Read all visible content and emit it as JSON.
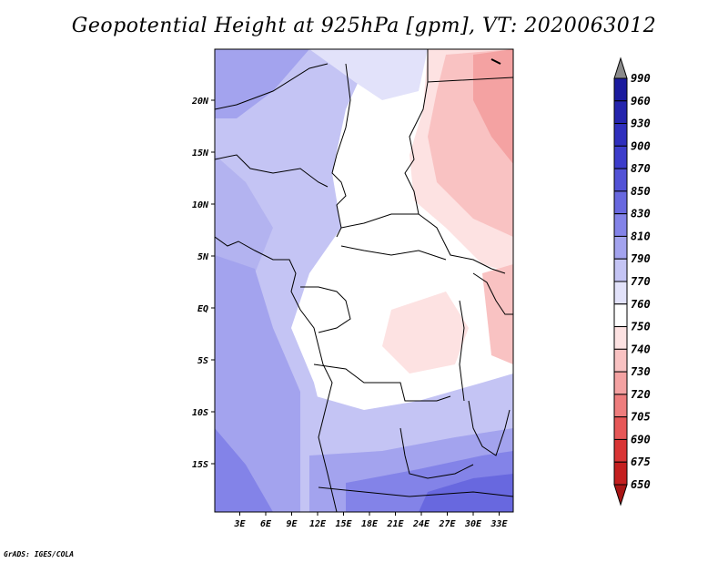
{
  "title": "Geopotential Height at 925hPa [gpm], VT: 2020063012",
  "credit": "GrADS: IGES/COLA",
  "map": {
    "lat_ticks": [
      "20N",
      "15N",
      "10N",
      "5N",
      "EQ",
      "5S",
      "10S",
      "15S"
    ],
    "lon_ticks": [
      "3E",
      "6E",
      "9E",
      "12E",
      "15E",
      "18E",
      "21E",
      "24E",
      "27E",
      "30E",
      "33E"
    ]
  },
  "colorbar": {
    "levels": [
      "990",
      "960",
      "930",
      "900",
      "870",
      "850",
      "830",
      "810",
      "790",
      "770",
      "760",
      "750",
      "740",
      "730",
      "720",
      "705",
      "690",
      "675",
      "650"
    ],
    "colors": [
      "#8a8a8a",
      "#1b1b9e",
      "#2424ad",
      "#2f2fbd",
      "#3d3dcb",
      "#5252d6",
      "#6868df",
      "#8383e8",
      "#a3a3ee",
      "#c4c4f4",
      "#e2e2fa",
      "#ffffff",
      "#fde2e2",
      "#f9c2c2",
      "#f4a2a2",
      "#ee7d7d",
      "#e65757",
      "#d93535",
      "#c41f1f",
      "#a81515"
    ]
  }
}
